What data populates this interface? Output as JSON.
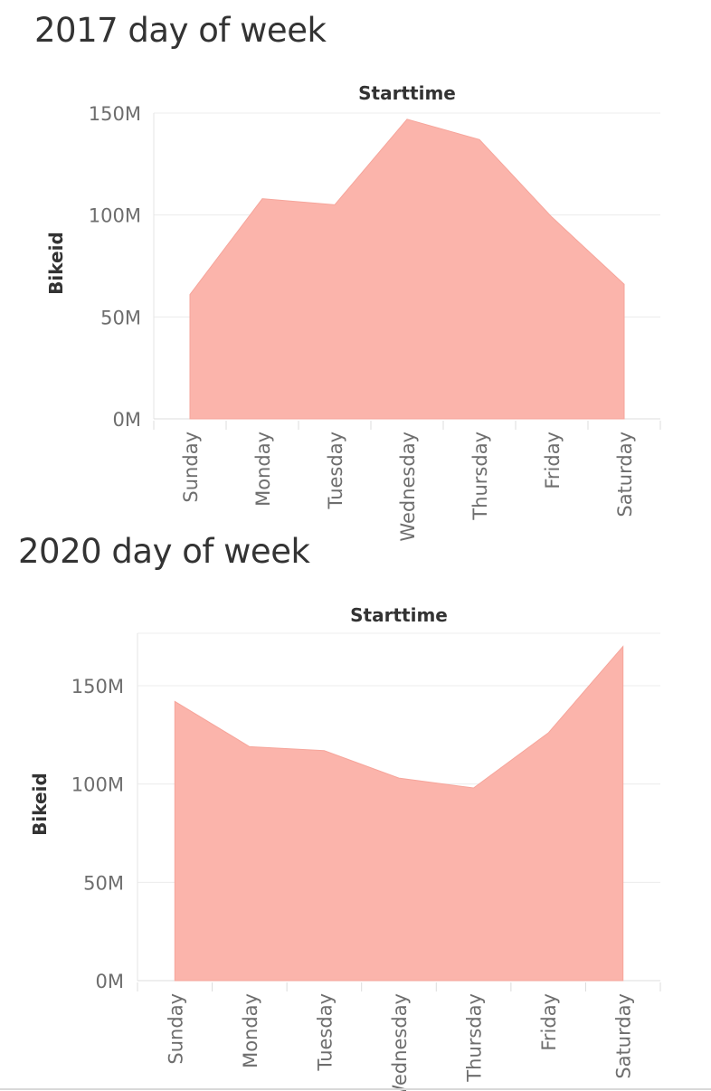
{
  "chart_data": [
    {
      "type": "area",
      "title": "2017 day of week",
      "column_header": "Starttime",
      "ylabel": "Bikeid",
      "categories": [
        "Sunday",
        "Monday",
        "Tuesday",
        "Wednesday",
        "Thursday",
        "Friday",
        "Saturday"
      ],
      "values": [
        61000000,
        108000000,
        105000000,
        147000000,
        137000000,
        99000000,
        66000000
      ],
      "ylim": [
        0,
        150000000
      ],
      "y_ticks": [
        {
          "value": 0,
          "label": "0M"
        },
        {
          "value": 50000000,
          "label": "50M"
        },
        {
          "value": 100000000,
          "label": "100M"
        },
        {
          "value": 150000000,
          "label": "150M"
        }
      ],
      "grid": true,
      "color": "#fbb4ab"
    },
    {
      "type": "area",
      "title": "2020 day of week",
      "column_header": "Starttime",
      "ylabel": "Bikeid",
      "categories": [
        "Sunday",
        "Monday",
        "Tuesday",
        "Wednesday",
        "Thursday",
        "Friday",
        "Saturday"
      ],
      "values": [
        142000000,
        119000000,
        117000000,
        103000000,
        98000000,
        126000000,
        170000000
      ],
      "ylim": [
        0,
        150000000
      ],
      "y_ticks": [
        {
          "value": 0,
          "label": "0M"
        },
        {
          "value": 50000000,
          "label": "50M"
        },
        {
          "value": 100000000,
          "label": "100M"
        },
        {
          "value": 150000000,
          "label": "150M"
        }
      ],
      "grid": true,
      "color": "#fbb4ab"
    }
  ]
}
